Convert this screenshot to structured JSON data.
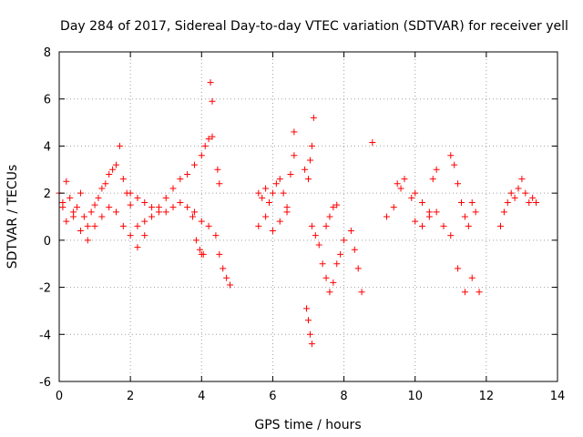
{
  "chart_data": {
    "type": "scatter",
    "title": "Day 284 of 2017, Sidereal Day-to-day VTEC variation (SDTVAR) for receiver yell",
    "xlabel": "GPS time / hours",
    "ylabel": "SDTVAR / TECUs",
    "xlim": [
      0,
      14
    ],
    "ylim": [
      -6,
      8
    ],
    "xticks": [
      0,
      2,
      4,
      6,
      8,
      10,
      12,
      14
    ],
    "yticks": [
      -6,
      -4,
      -2,
      0,
      2,
      4,
      6,
      8
    ],
    "grid": true,
    "marker": "+",
    "color": "#ff0000",
    "series": [
      {
        "name": "SDTVAR",
        "segments": [
          {
            "name": "early-band",
            "x": [
              0.0,
              0.1,
              0.2,
              0.3,
              0.4,
              0.5,
              0.6,
              0.7,
              0.8,
              0.9,
              1.0,
              1.1,
              1.2,
              1.3,
              1.4,
              1.5,
              1.6,
              1.7,
              1.8,
              1.9,
              2.0
            ],
            "y": [
              2.0,
              1.6,
              2.5,
              1.8,
              1.2,
              1.4,
              2.0,
              1.0,
              0.6,
              1.2,
              1.5,
              1.8,
              2.2,
              2.4,
              2.8,
              3.0,
              3.2,
              4.0,
              2.6,
              2.0,
              1.5
            ]
          },
          {
            "name": "early-low",
            "x": [
              0.1,
              0.2,
              0.4,
              0.6,
              0.8,
              1.0,
              1.2,
              1.4,
              1.6,
              1.8,
              2.0,
              2.2,
              2.4
            ],
            "y": [
              1.4,
              0.8,
              1.0,
              0.4,
              0.0,
              0.6,
              1.0,
              1.4,
              1.2,
              0.6,
              0.2,
              -0.3,
              0.2
            ]
          },
          {
            "name": "morning-band",
            "x": [
              2.0,
              2.2,
              2.4,
              2.6,
              2.8,
              3.0,
              3.2,
              3.4,
              3.6,
              3.8,
              4.0,
              4.1,
              4.2,
              4.3
            ],
            "y": [
              2.0,
              1.8,
              1.6,
              1.4,
              1.4,
              1.8,
              2.2,
              2.6,
              2.8,
              3.2,
              3.6,
              4.0,
              4.3,
              4.4
            ]
          },
          {
            "name": "morning-low",
            "x": [
              2.2,
              2.4,
              2.6,
              2.8,
              3.0,
              3.2,
              3.4,
              3.6,
              3.8,
              4.0,
              4.2
            ],
            "y": [
              0.6,
              0.8,
              1.0,
              1.2,
              1.2,
              1.4,
              1.6,
              1.4,
              1.2,
              0.8,
              0.6
            ]
          },
          {
            "name": "decline-a",
            "x": [
              3.75,
              3.85,
              3.95,
              4.0,
              4.05
            ],
            "y": [
              1.0,
              0.0,
              -0.4,
              -0.6,
              -0.6
            ]
          },
          {
            "name": "decline-b",
            "x": [
              4.4,
              4.5,
              4.6,
              4.7,
              4.8
            ],
            "y": [
              0.2,
              -0.6,
              -1.2,
              -1.6,
              -1.9
            ]
          },
          {
            "name": "spikes-a",
            "x": [
              4.25,
              4.3,
              4.45,
              4.5
            ],
            "y": [
              6.7,
              5.9,
              3.0,
              2.4
            ]
          },
          {
            "name": "mid-cluster",
            "x": [
              5.6,
              5.7,
              5.8,
              5.9,
              6.0,
              6.1,
              6.2,
              6.3,
              6.4,
              6.5,
              6.6
            ],
            "y": [
              2.0,
              1.8,
              2.2,
              1.6,
              2.0,
              2.4,
              2.6,
              2.0,
              1.4,
              2.8,
              3.6
            ]
          },
          {
            "name": "mid-low",
            "x": [
              5.6,
              5.8,
              6.0,
              6.2,
              6.4,
              6.6
            ],
            "y": [
              0.6,
              1.0,
              0.4,
              0.8,
              1.2,
              4.6
            ]
          },
          {
            "name": "pre-gap",
            "x": [
              6.9,
              7.0,
              7.05,
              7.1,
              7.15
            ],
            "y": [
              3.0,
              2.6,
              3.4,
              4.0,
              5.2
            ]
          },
          {
            "name": "dip-7h",
            "x": [
              6.95,
              7.0,
              7.05,
              7.1
            ],
            "y": [
              -2.9,
              -3.4,
              -4.0,
              -4.4
            ]
          },
          {
            "name": "low-7h",
            "x": [
              7.1,
              7.2,
              7.3,
              7.4,
              7.5,
              7.6,
              7.7,
              7.8,
              7.9,
              8.0
            ],
            "y": [
              0.6,
              0.2,
              -0.2,
              -1.0,
              -1.6,
              -2.2,
              -1.8,
              -1.0,
              -0.6,
              0.0
            ]
          },
          {
            "name": "rise-7h",
            "x": [
              7.5,
              7.6,
              7.7,
              7.8,
              8.2,
              8.3,
              8.4,
              8.5
            ],
            "y": [
              0.6,
              1.0,
              1.4,
              1.5,
              0.4,
              -0.4,
              -1.2,
              -2.2
            ]
          },
          {
            "name": "isolated",
            "x": [
              8.8
            ],
            "y": [
              4.15
            ]
          },
          {
            "name": "late-a",
            "x": [
              9.2,
              9.4,
              9.5,
              9.6,
              9.7,
              9.9,
              10.0,
              10.2,
              10.4,
              10.5,
              10.6
            ],
            "y": [
              1.0,
              1.4,
              2.4,
              2.2,
              2.6,
              1.8,
              2.0,
              1.6,
              1.2,
              2.6,
              3.0
            ]
          },
          {
            "name": "late-low",
            "x": [
              10.0,
              10.2,
              10.4,
              10.6,
              10.8,
              11.0,
              11.2,
              11.4,
              11.6,
              11.8
            ],
            "y": [
              0.8,
              0.6,
              1.0,
              1.2,
              0.6,
              0.2,
              -1.2,
              -2.2,
              -1.6,
              -2.2
            ]
          },
          {
            "name": "late-b",
            "x": [
              11.0,
              11.1,
              11.2,
              11.3,
              11.4,
              11.5,
              11.6,
              11.7
            ],
            "y": [
              3.6,
              3.2,
              2.4,
              1.6,
              1.0,
              0.6,
              1.6,
              1.2
            ]
          },
          {
            "name": "end-cluster",
            "x": [
              12.4,
              12.5,
              12.6,
              12.7,
              12.8,
              12.9,
              13.0,
              13.1,
              13.2,
              13.3,
              13.4
            ],
            "y": [
              0.6,
              1.2,
              1.6,
              2.0,
              1.8,
              2.2,
              2.6,
              2.0,
              1.6,
              1.8,
              1.6
            ]
          }
        ]
      }
    ]
  }
}
